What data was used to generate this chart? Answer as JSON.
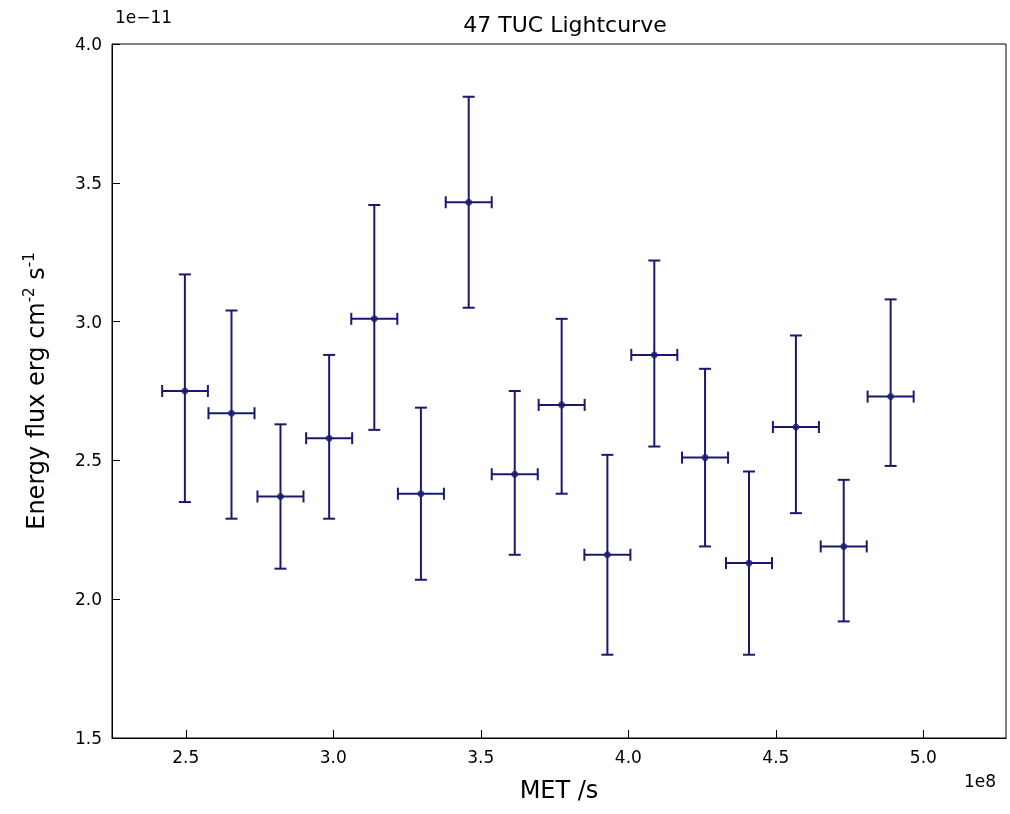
{
  "chart_data": {
    "type": "scatter",
    "title": "47 TUC Lightcurve",
    "xlabel": "MET /s",
    "ylabel": "Energy flux erg cm$^{-2}$ s$^{-1}$",
    "annotations": [
      "1e−11",
      "1e8"
    ],
    "x": [
      2.497,
      2.655,
      2.821,
      2.986,
      3.139,
      3.297,
      3.459,
      3.615,
      3.774,
      3.929,
      4.088,
      4.26,
      4.409,
      4.568,
      4.73,
      4.889
    ],
    "series": [
      {
        "color": "#191970",
        "values": [
          2.75,
          2.67,
          2.37,
          2.58,
          3.01,
          2.38,
          3.43,
          2.45,
          2.7,
          2.16,
          2.88,
          2.51,
          2.13,
          2.62,
          2.19,
          2.73
        ],
        "errors": [
          [
            2.35,
            3.17
          ],
          [
            2.29,
            3.04
          ],
          [
            2.11,
            2.63
          ],
          [
            2.29,
            2.88
          ],
          [
            2.61,
            3.42
          ],
          [
            2.07,
            2.69
          ],
          [
            3.05,
            3.81
          ],
          [
            2.16,
            2.75
          ],
          [
            2.38,
            3.01
          ],
          [
            1.8,
            2.52
          ],
          [
            2.55,
            3.22
          ],
          [
            2.19,
            2.83
          ],
          [
            1.8,
            2.46
          ],
          [
            2.31,
            2.95
          ],
          [
            1.92,
            2.43
          ],
          [
            2.48,
            3.08
          ]
        ],
        "xerrors": [
          [
            2.42,
            2.575
          ],
          [
            2.577,
            2.733
          ],
          [
            2.743,
            2.899
          ],
          [
            2.908,
            3.064
          ],
          [
            3.061,
            3.217
          ],
          [
            3.219,
            3.375
          ],
          [
            3.381,
            3.537
          ],
          [
            3.537,
            3.693
          ],
          [
            3.696,
            3.852
          ],
          [
            3.851,
            4.007
          ],
          [
            4.01,
            4.166
          ],
          [
            4.182,
            4.338
          ],
          [
            4.331,
            4.487
          ],
          [
            4.49,
            4.646
          ],
          [
            4.652,
            4.808
          ],
          [
            4.811,
            4.967
          ]
        ]
      }
    ],
    "xlim": [
      2.25,
      5.28
    ],
    "ylim": [
      1.5,
      4.0
    ],
    "xticks": [
      {
        "value": 2.5,
        "label": "2.5"
      },
      {
        "value": 3,
        "label": "3.0"
      },
      {
        "value": 3.5,
        "label": "3.5"
      },
      {
        "value": 4,
        "label": "4.0"
      },
      {
        "value": 4.5,
        "label": "4.5"
      },
      {
        "value": 5,
        "label": "5.0"
      }
    ],
    "yticks": [
      {
        "value": 1.5,
        "label": "1.5"
      },
      {
        "value": 2,
        "label": "2.0"
      },
      {
        "value": 2.5,
        "label": "2.5"
      },
      {
        "value": 3,
        "label": "3.0"
      },
      {
        "value": 3.5,
        "label": "3.5"
      },
      {
        "value": 4,
        "label": "4.0"
      }
    ],
    "marker": "circle",
    "grid": false
  }
}
